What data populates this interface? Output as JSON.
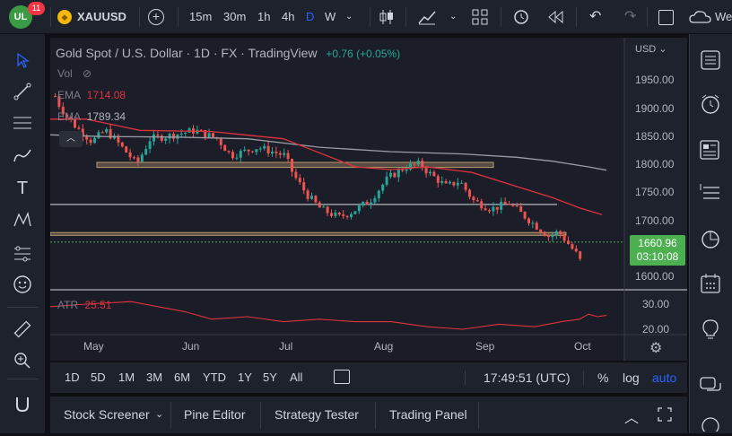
{
  "toolbar": {
    "symbol": "XAUUSD",
    "notifications": "11",
    "intervals": [
      "15m",
      "30m",
      "1h",
      "4h",
      "D",
      "W"
    ],
    "active_interval": "D",
    "cut_label": "We"
  },
  "legend": {
    "title": "Gold Spot / U.S. Dollar · 1D · FX · TradingView",
    "change": "+0.76 (+0.05%)",
    "vol_label": "Vol",
    "ema1_label": "EMA",
    "ema1_value": "1714.08",
    "ema2_label": "EMA",
    "ema2_value": "1789.34",
    "atr_label": "ATR",
    "atr_value": "25.51"
  },
  "price_axis": {
    "currency": "USD",
    "ticks": [
      "1950.00",
      "1900.00",
      "1850.00",
      "1800.00",
      "1750.00",
      "1700.00",
      "1650.00",
      "1600.00"
    ],
    "last_price": "1660.96",
    "countdown": "03:10:08"
  },
  "atr_axis": {
    "ticks": [
      "30.00",
      "20.00"
    ]
  },
  "time_axis": {
    "labels": [
      "May",
      "Jun",
      "Jul",
      "Aug",
      "Sep",
      "Oct"
    ]
  },
  "range_bar": {
    "ranges": [
      "1D",
      "5D",
      "1M",
      "3M",
      "6M",
      "YTD",
      "1Y",
      "5Y",
      "All"
    ],
    "clock": "17:49:51 (UTC)",
    "percent": "%",
    "log": "log",
    "auto": "auto"
  },
  "panels": {
    "tabs": [
      "Stock Screener",
      "Pine Editor",
      "Strategy Tester",
      "Trading Panel"
    ]
  },
  "colors": {
    "up": "#26a69a",
    "down": "#ef5350",
    "ema_fast": "#e0323c",
    "ema_slow": "#9a9ca4",
    "zone": "#8a7358",
    "accent": "#2962ff",
    "price_badge": "#4caf50"
  }
}
